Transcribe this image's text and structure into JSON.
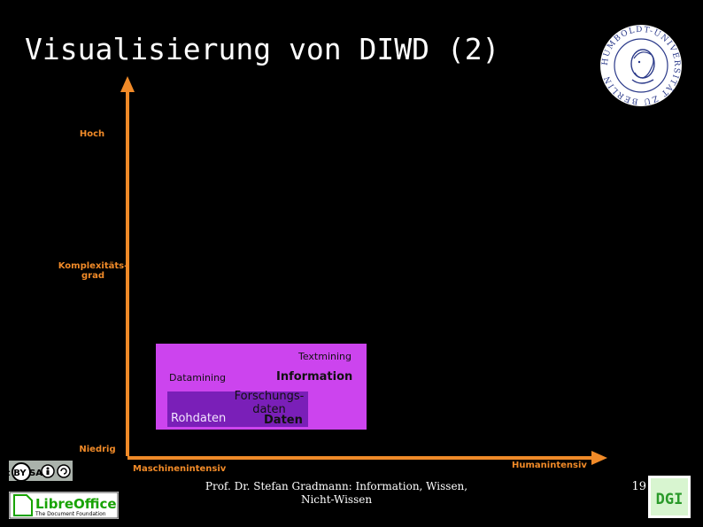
{
  "slide": {
    "title": "Visualisierung von DIWD (2)",
    "footer": "Prof. Dr. Stefan Gradmann: Information, Wissen,\nNicht-Wissen",
    "page_number": "19"
  },
  "diagram": {
    "y_axis": {
      "high": "Hoch",
      "mid": "Komplexitäts-\ngrad",
      "low": "Niedrig"
    },
    "x_axis": {
      "left": "Maschinenintensiv",
      "right": "Humanintensiv"
    },
    "boxes": {
      "outer_color": "#cc44ee",
      "inner_color": "#7a1fb8",
      "textmining": "Textmining",
      "datamining": "Datamining",
      "information": "Information",
      "forschungsdaten": "Forschungs-\ndaten",
      "rohdaten": "Rohdaten",
      "daten": "Daten"
    },
    "axis_color": "#f08a28"
  },
  "logos": {
    "seal_text": "HUMBOLDT-UNIVERSITÄT ZU BERLIN",
    "cc_text": "cc BY SA",
    "libreoffice_name": "LibreOffice",
    "libreoffice_sub": "The Document Foundation",
    "dgi_text": "DGI"
  }
}
